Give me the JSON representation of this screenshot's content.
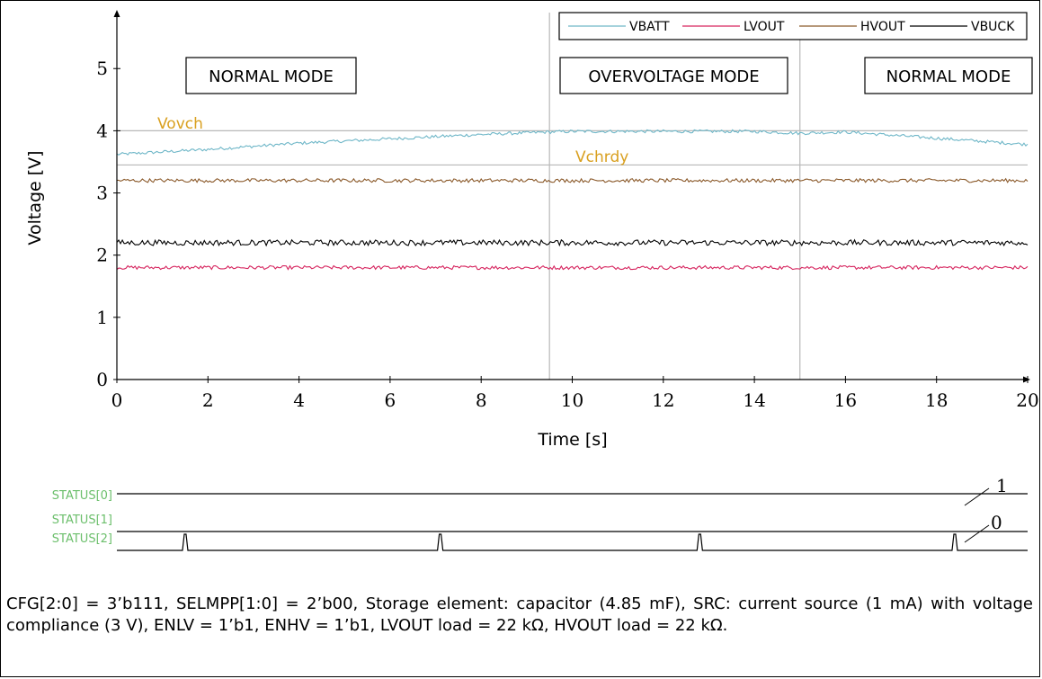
{
  "chart_data": {
    "type": "line",
    "xlabel": "Time [s]",
    "ylabel": "Voltage [V]",
    "xlim": [
      0,
      20
    ],
    "ylim": [
      0,
      5.9
    ],
    "x_ticks": [
      "0",
      "2",
      "4",
      "6",
      "8",
      "10",
      "12",
      "14",
      "16",
      "18",
      "20"
    ],
    "y_ticks": [
      "0",
      "1",
      "2",
      "3",
      "4",
      "5"
    ],
    "legend_position": "top-right",
    "series": [
      {
        "name": "VBATT",
        "color": "#6fb7c8",
        "x": [
          0,
          2,
          4,
          6,
          8,
          9.5,
          10,
          12,
          14,
          15,
          16,
          18,
          20
        ],
        "values": [
          3.62,
          3.7,
          3.8,
          3.87,
          3.94,
          3.98,
          3.99,
          3.99,
          3.99,
          3.96,
          3.98,
          3.88,
          3.78
        ]
      },
      {
        "name": "LVOUT",
        "color": "#d6245e",
        "x": [
          0,
          20
        ],
        "values": [
          1.8,
          1.8
        ]
      },
      {
        "name": "HVOUT",
        "color": "#8b5a2b",
        "x": [
          0,
          20
        ],
        "values": [
          3.2,
          3.2
        ]
      },
      {
        "name": "VBUCK",
        "color": "#000000",
        "x": [
          0,
          20
        ],
        "values": [
          2.2,
          2.2
        ]
      }
    ],
    "thresholds": [
      {
        "name": "Vovch",
        "value": 4.0,
        "color": "#d9a020"
      },
      {
        "name": "Vchrdy",
        "value": 3.45,
        "color": "#d9a020"
      }
    ],
    "mode_boundaries": [
      9.5,
      15
    ],
    "modes": [
      "NORMAL MODE",
      "OVERVOLTAGE MODE",
      "NORMAL MODE"
    ]
  },
  "status": {
    "labels": [
      "STATUS[0]",
      "STATUS[1]",
      "STATUS[2]"
    ],
    "high_label": "1",
    "low_label": "0",
    "pulse_times": [
      1.5,
      7.1,
      12.8,
      18.4
    ]
  },
  "caption": "CFG[2:0] = 3’b111, SELMPP[1:0] = 2’b00, Storage element: capacitor (4.85 mF), SRC: current source (1 mA) with voltage compliance (3 V), ENLV = 1’b1, ENHV = 1’b1, LVOUT load = 22 kΩ, HVOUT load = 22 kΩ."
}
